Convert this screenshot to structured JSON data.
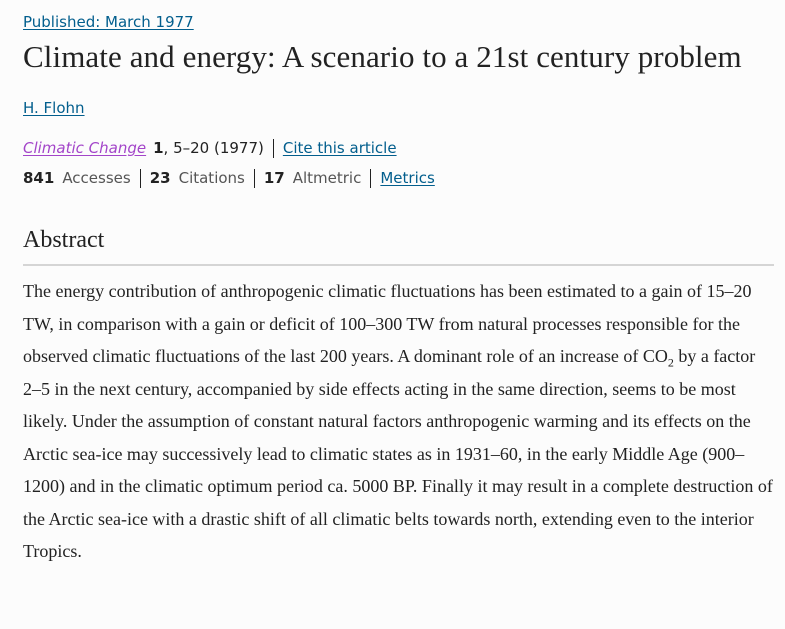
{
  "published": "Published: March 1977",
  "title": "Climate and energy: A scenario to a 21st century problem",
  "author": "H. Flohn",
  "journal": "Climatic Change",
  "volume": "1",
  "pages_year": ", 5–20 (1977)",
  "cite_label": "Cite this article",
  "metrics": {
    "accesses_value": "841",
    "accesses_label": "Accesses",
    "citations_value": "23",
    "citations_label": "Citations",
    "altmetric_value": "17",
    "altmetric_label": "Altmetric",
    "metrics_link": "Metrics"
  },
  "abstract": {
    "heading": "Abstract",
    "part1": "The energy contribution of anthropogenic climatic fluctuations has been estimated to a gain of 15–20 TW, in comparison with a gain or deficit of 100–300 TW from natural processes responsible for the observed climatic fluctuations of the last 200 years. A dominant role of an increase of CO",
    "subscript": "2",
    "part2": " by a factor 2–5 in the next century, accompanied by side effects acting in the same direction, seems to be most likely. Under the assumption of constant natural factors anthropogenic warming and its effects on the Arctic sea-ice may successively lead to climatic states as in 1931–60, in the early Middle Age (900–1200) and in the climatic optimum period ca. 5000 BP. Finally it may result in a complete destruction of the Arctic sea-ice with a drastic shift of all climatic belts towards north, extending even to the interior Tropics."
  },
  "colors": {
    "link": "#025e8d",
    "journal_link": "#a345c9",
    "text": "#222222",
    "background": "#fcfcfc"
  }
}
